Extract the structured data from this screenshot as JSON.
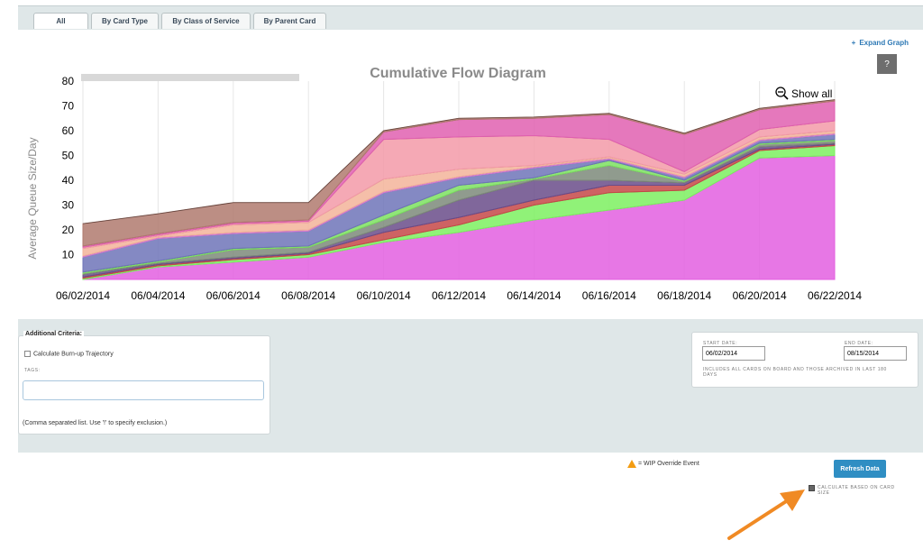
{
  "tabs": [
    {
      "label": "All"
    },
    {
      "label": "By Card Type"
    },
    {
      "label": "By Class of Service"
    },
    {
      "label": "By Parent Card"
    }
  ],
  "expand_graph": {
    "label": "Expand Graph"
  },
  "help_button": {
    "label": "?"
  },
  "chart_data": {
    "type": "area",
    "title": "Cumulative Flow Diagram",
    "xlabel": "",
    "ylabel": "Average Queue Size/Day",
    "ylim": [
      0,
      80
    ],
    "yticks": [
      10,
      20,
      30,
      40,
      50,
      60,
      70,
      80
    ],
    "x": [
      "06/02/2014",
      "06/04/2014",
      "06/06/2014",
      "06/08/2014",
      "06/10/2014",
      "06/12/2014",
      "06/14/2014",
      "06/16/2014",
      "06/18/2014",
      "06/20/2014",
      "06/22/2014"
    ],
    "show_all_label": "Show all",
    "stacked": true,
    "series": [
      {
        "color": "#e35fe0",
        "values": [
          0,
          5,
          7,
          9,
          15,
          19,
          24,
          28,
          32,
          49,
          50
        ]
      },
      {
        "color": "#7cf060",
        "values": [
          0.5,
          0.5,
          1,
          1,
          1,
          3,
          6,
          7,
          4,
          3,
          4
        ]
      },
      {
        "color": "#c54848",
        "values": [
          0.5,
          0.5,
          0.5,
          0.5,
          3,
          3,
          2,
          3,
          2,
          0.5,
          0.5
        ]
      },
      {
        "color": "#6a4c8a",
        "values": [
          1,
          0.5,
          0.5,
          0.5,
          2,
          7,
          8,
          2,
          1,
          1,
          0.5
        ]
      },
      {
        "color": "#7d8a7a",
        "values": [
          0.5,
          0.5,
          3,
          2,
          3,
          4,
          0.5,
          6,
          0.5,
          1,
          1
        ]
      },
      {
        "color": "#7ce060",
        "values": [
          0.5,
          0.5,
          0.5,
          0.5,
          2,
          2,
          0.5,
          2,
          0.5,
          0.5,
          0.5
        ]
      },
      {
        "color": "#6f74b8",
        "values": [
          6,
          9,
          6,
          6,
          9,
          3,
          4,
          0.5,
          1,
          1,
          2
        ]
      },
      {
        "color": "#d37ad0",
        "values": [
          0.5,
          0.5,
          0.5,
          0.5,
          0.5,
          0.5,
          0.5,
          0.5,
          0.5,
          0.5,
          0.5
        ]
      },
      {
        "color": "#f3b49a",
        "values": [
          3,
          0.5,
          3,
          3,
          5,
          3,
          0.5,
          0.5,
          1,
          1,
          1
        ]
      },
      {
        "color": "#f39aa8",
        "values": [
          0.5,
          0.5,
          0.5,
          0.5,
          16,
          13,
          12,
          7,
          1,
          3,
          4
        ]
      },
      {
        "color": "#e060b0",
        "values": [
          0.5,
          0.5,
          0.5,
          0.5,
          3,
          7,
          7,
          10,
          15,
          8,
          8
        ]
      },
      {
        "color": "#b07a6e",
        "values": [
          9,
          8,
          8,
          7,
          0.5,
          0.5,
          0.5,
          0.5,
          0.5,
          0.5,
          0.5
        ]
      }
    ]
  },
  "criteria": {
    "title": "Additional Criteria:",
    "burnup_label": "Calculate Burn-up Trajectory",
    "tags_label": "TAGS:",
    "tags_value": "",
    "hint": "(Comma separated list. Use '!' to specify exclusion.)"
  },
  "dates": {
    "start_label": "START DATE:",
    "start_value": "06/02/2014",
    "end_label": "END DATE:",
    "end_value": "08/15/2014",
    "note": "INCLUDES ALL CARDS ON BOARD AND THOSE ARCHIVED IN LAST 180 DAYS"
  },
  "wip_legend": {
    "label": "= WIP Override Event"
  },
  "refresh_button": {
    "label": "Refresh Data"
  },
  "card_size": {
    "label": "CALCULATE BASED ON CARD SIZE",
    "checked": true
  },
  "colors": {
    "accent": "#2f8ec3",
    "arrow": "#f08a24",
    "band": "#dfe7e8"
  }
}
